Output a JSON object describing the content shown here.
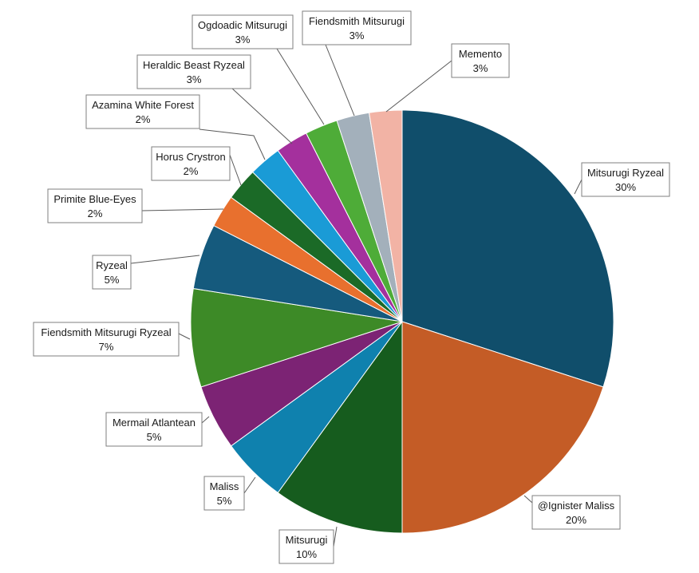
{
  "chart_data": {
    "type": "pie",
    "title": "",
    "slices": [
      {
        "label": "Mitsurugi Ryzeal",
        "pct_label": "30%",
        "value": 30,
        "color": "#104e6b"
      },
      {
        "label": "@Ignister Maliss",
        "pct_label": "20%",
        "value": 20,
        "color": "#c45c26"
      },
      {
        "label": "Mitsurugi",
        "pct_label": "10%",
        "value": 10,
        "color": "#165c1e"
      },
      {
        "label": "Maliss",
        "pct_label": "5%",
        "value": 5,
        "color": "#0f81ae"
      },
      {
        "label": "Mermail Atlantean",
        "pct_label": "5%",
        "value": 5,
        "color": "#7c2374"
      },
      {
        "label": "Fiendsmith Mitsurugi Ryzeal",
        "pct_label": "7%",
        "value": 7.5,
        "color": "#3d8a27"
      },
      {
        "label": "Ryzeal",
        "pct_label": "5%",
        "value": 5,
        "color": "#155a7d"
      },
      {
        "label": "Primite Blue-Eyes",
        "pct_label": "2%",
        "value": 2.5,
        "color": "#e8702e"
      },
      {
        "label": "Horus Crystron",
        "pct_label": "2%",
        "value": 2.5,
        "color": "#1b6a27"
      },
      {
        "label": "Azamina White Forest",
        "pct_label": "2%",
        "value": 2.5,
        "color": "#1a9bd6"
      },
      {
        "label": "Heraldic Beast Ryzeal",
        "pct_label": "3%",
        "value": 2.5,
        "color": "#a4309d"
      },
      {
        "label": "Ogdoadic Mitsurugi",
        "pct_label": "3%",
        "value": 2.5,
        "color": "#4eac38"
      },
      {
        "label": "Fiendsmith Mitsurugi",
        "pct_label": "3%",
        "value": 2.5,
        "color": "#a3b0bb"
      },
      {
        "label": "Memento",
        "pct_label": "3%",
        "value": 2.5,
        "color": "#f2b3a5"
      }
    ]
  }
}
